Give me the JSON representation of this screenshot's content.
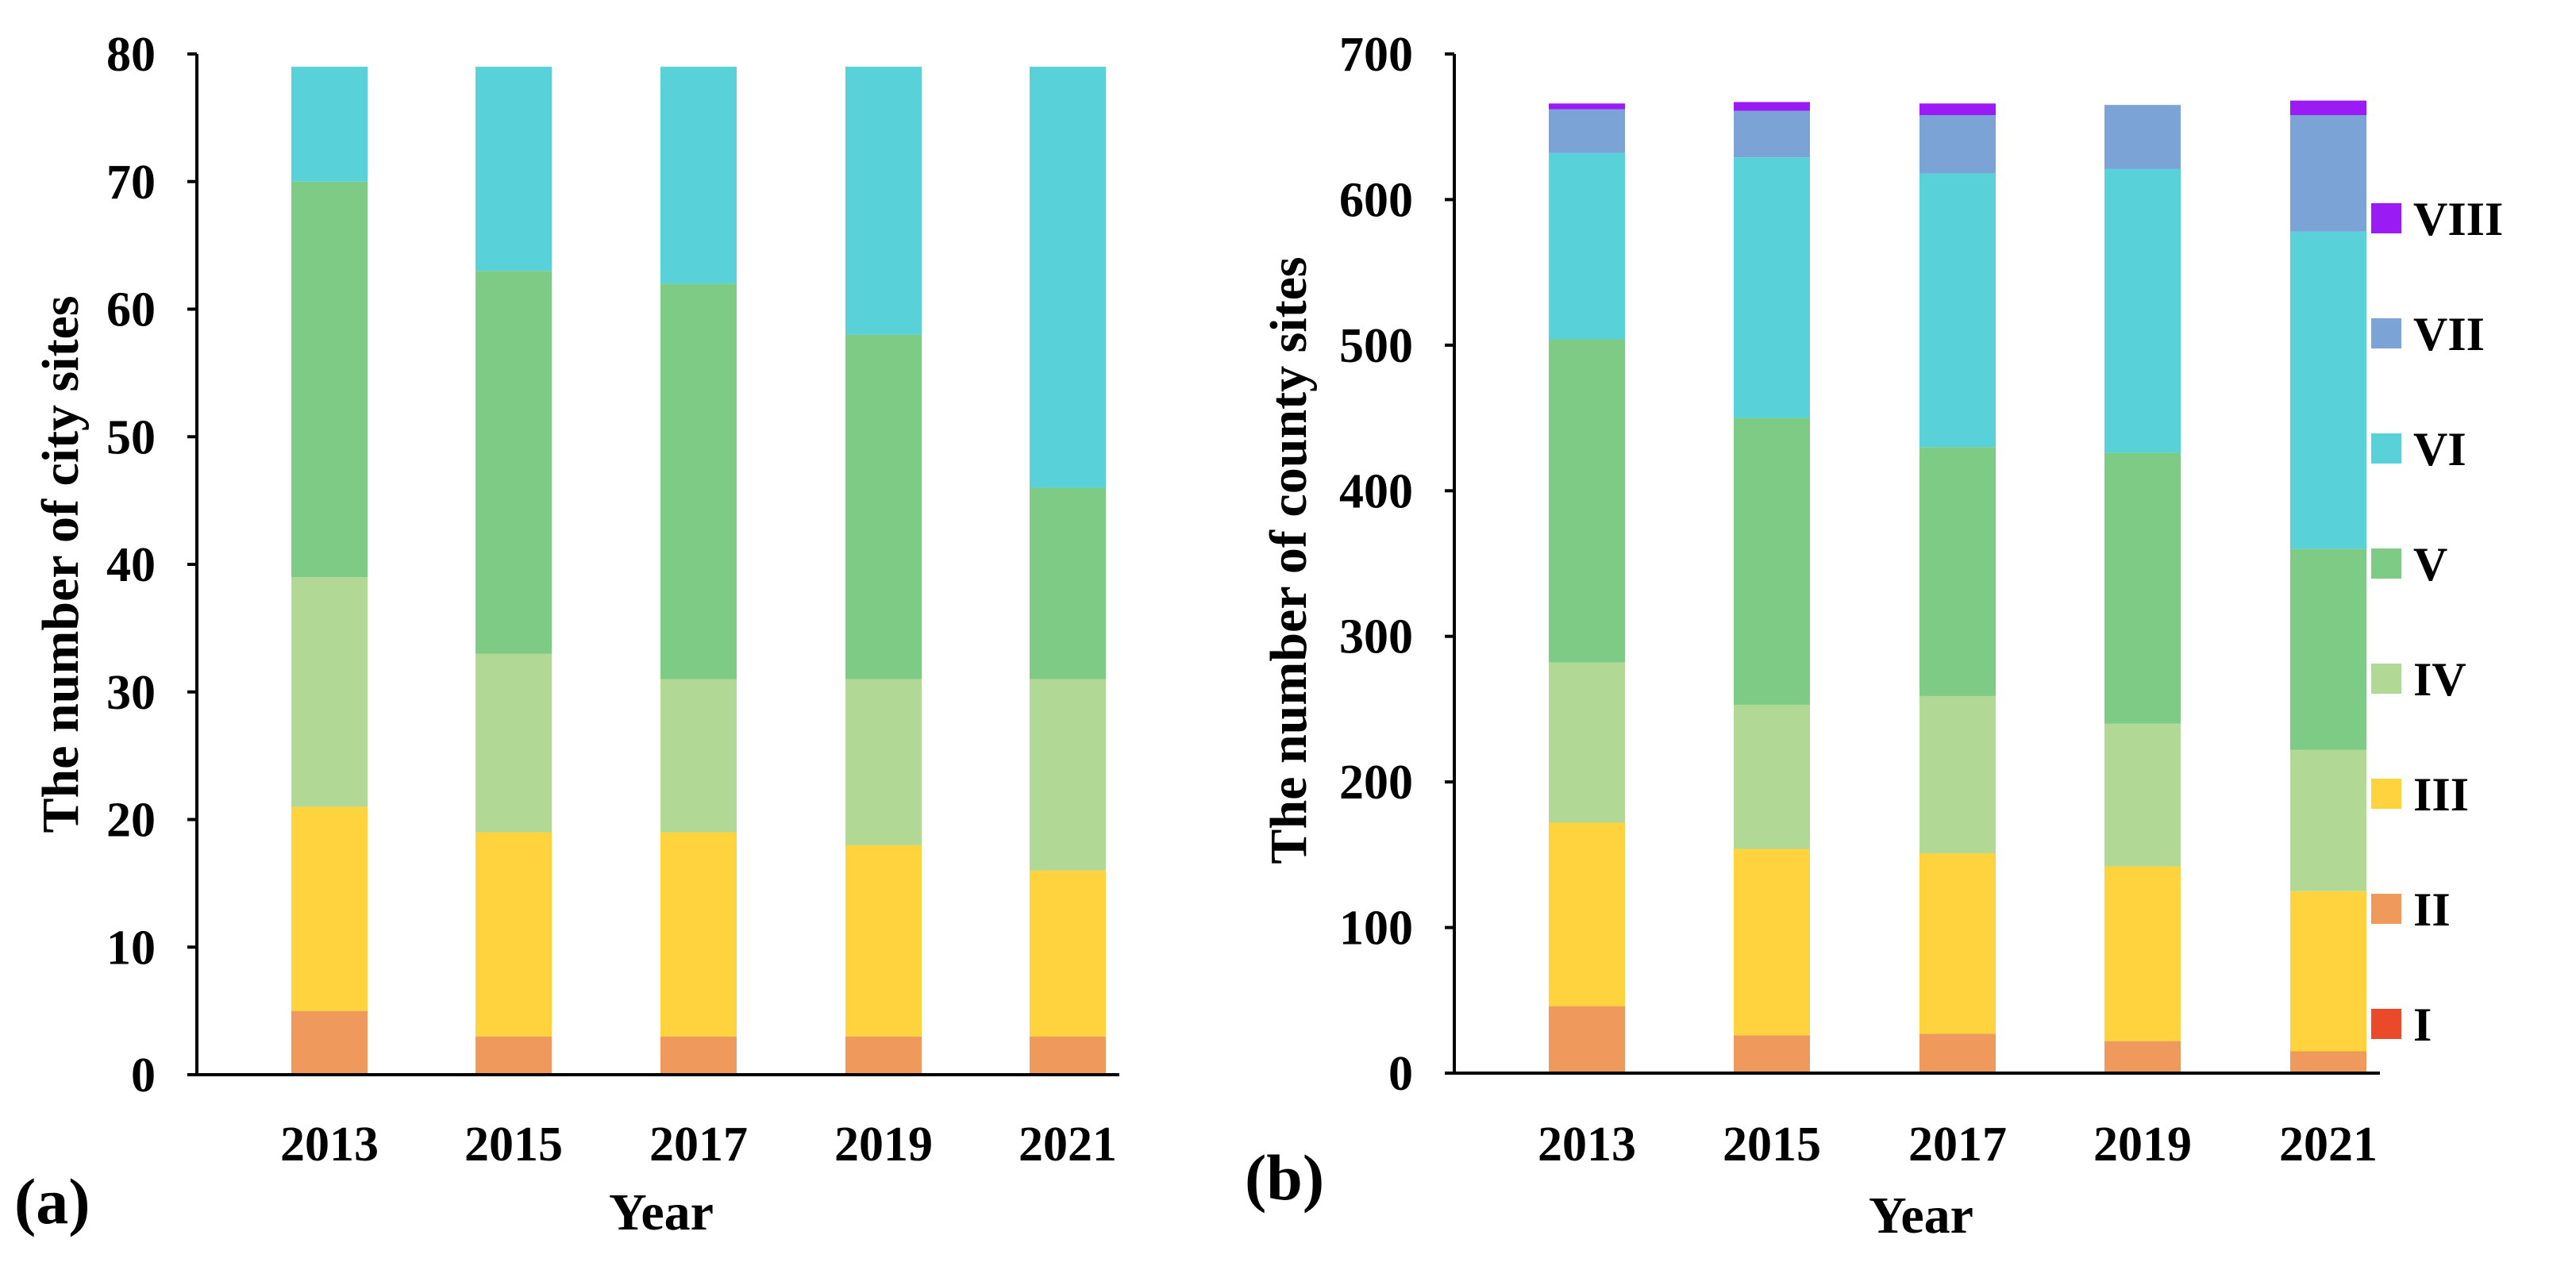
{
  "chart_data": [
    {
      "type": "bar",
      "stacked": true,
      "panel_label": "(a)",
      "categories": [
        "2013",
        "2015",
        "2017",
        "2019",
        "2021"
      ],
      "series": [
        {
          "name": "I",
          "values": [
            0,
            0,
            0,
            0,
            0
          ]
        },
        {
          "name": "II",
          "values": [
            5,
            3,
            3,
            3,
            3
          ]
        },
        {
          "name": "III",
          "values": [
            16,
            16,
            16,
            15,
            13
          ]
        },
        {
          "name": "IV",
          "values": [
            18,
            14,
            12,
            13,
            15
          ]
        },
        {
          "name": "V",
          "values": [
            31,
            30,
            31,
            27,
            15
          ]
        },
        {
          "name": "VI",
          "values": [
            9,
            16,
            17,
            21,
            33
          ]
        },
        {
          "name": "VII",
          "values": [
            0,
            0,
            0,
            0,
            0
          ]
        },
        {
          "name": "VIII",
          "values": [
            0,
            0,
            0,
            0,
            0
          ]
        }
      ],
      "xlabel": "Year",
      "ylabel": "The number of city sites",
      "ylim": [
        0,
        80
      ],
      "yticks": [
        "0",
        "10",
        "20",
        "30",
        "40",
        "50",
        "60",
        "70",
        "80"
      ],
      "grid": false
    },
    {
      "type": "bar",
      "stacked": true,
      "panel_label": "(b)",
      "categories": [
        "2013",
        "2015",
        "2017",
        "2019",
        "2021"
      ],
      "series": [
        {
          "name": "I",
          "values": [
            0,
            0,
            0,
            0,
            0
          ]
        },
        {
          "name": "II",
          "values": [
            46,
            26,
            27,
            22,
            15
          ]
        },
        {
          "name": "III",
          "values": [
            126,
            128,
            124,
            120,
            110
          ]
        },
        {
          "name": "IV",
          "values": [
            110,
            99,
            108,
            98,
            97
          ]
        },
        {
          "name": "V",
          "values": [
            222,
            197,
            171,
            186,
            138
          ]
        },
        {
          "name": "VI",
          "values": [
            128,
            179,
            188,
            195,
            218
          ]
        },
        {
          "name": "VII",
          "values": [
            30,
            32,
            40,
            44,
            80
          ]
        },
        {
          "name": "VIII",
          "values": [
            4,
            6,
            8,
            0,
            10
          ]
        }
      ],
      "xlabel": "Year",
      "ylabel": "The number of county sites",
      "ylim": [
        0,
        700
      ],
      "yticks": [
        "0",
        "100",
        "200",
        "300",
        "400",
        "500",
        "600",
        "700"
      ],
      "grid": false
    }
  ],
  "legend": {
    "placement": "right",
    "items": [
      {
        "name": "VIII",
        "color": "#9B1BF5"
      },
      {
        "name": "VII",
        "color": "#7BA3D6"
      },
      {
        "name": "VI",
        "color": "#58D2D8"
      },
      {
        "name": "V",
        "color": "#7DCB85"
      },
      {
        "name": "IV",
        "color": "#B2D896"
      },
      {
        "name": "III",
        "color": "#FED33D"
      },
      {
        "name": "II",
        "color": "#F0995C"
      },
      {
        "name": "I",
        "color": "#EB4A2A"
      }
    ]
  }
}
